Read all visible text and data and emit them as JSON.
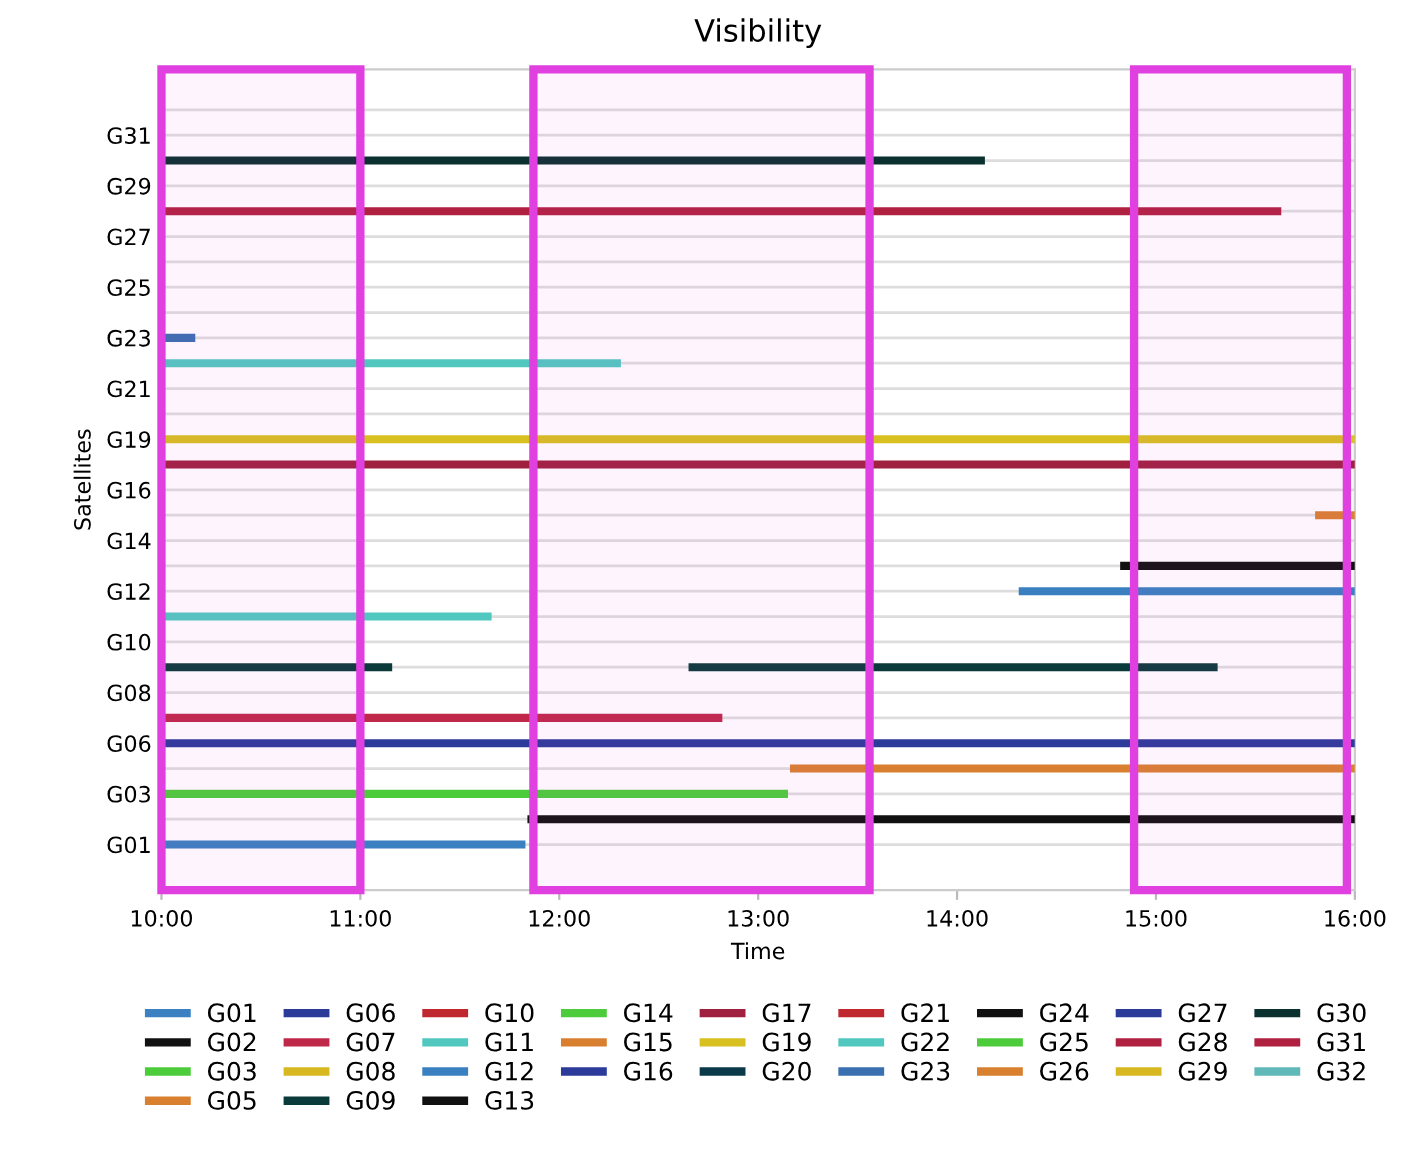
{
  "chart_data": {
    "type": "bar",
    "orientation": "horizontal",
    "title": "Visibility",
    "xlabel": "Time",
    "ylabel": "Satellites",
    "categories": [
      null,
      "G31",
      null,
      "G29",
      null,
      "G27",
      null,
      "G25",
      null,
      "G23",
      null,
      "G21",
      null,
      "G19",
      null,
      "G16",
      null,
      "G14",
      null,
      "G12",
      null,
      "G10",
      null,
      "G08",
      null,
      "G06",
      null,
      "G03",
      null,
      "G01"
    ],
    "xlim": [
      10,
      16
    ],
    "xticks": [
      {
        "value": 10,
        "label": "10:00"
      },
      {
        "value": 11,
        "label": "11:00"
      },
      {
        "value": 12,
        "label": "12:00"
      },
      {
        "value": 13,
        "label": "13:00"
      },
      {
        "value": 14,
        "label": "14:00"
      },
      {
        "value": 15,
        "label": "15:00"
      },
      {
        "value": 16,
        "label": "16:00"
      }
    ],
    "grid": "y",
    "legend": "bottom",
    "bands": [
      {
        "axis": "x",
        "from": 10.0,
        "to": 11.0,
        "color": "#e040e0"
      },
      {
        "axis": "x",
        "from": 11.87,
        "to": 13.56,
        "color": "#e040e0"
      },
      {
        "axis": "x",
        "from": 14.89,
        "to": 15.96,
        "color": "#e040e0"
      }
    ],
    "series": [
      {
        "name": "G01",
        "color": "#3b80c0",
        "values": [
          null,
          null,
          null,
          null,
          null,
          null,
          null,
          null,
          null,
          null,
          null,
          null,
          null,
          null,
          null,
          null,
          null,
          null,
          null,
          null,
          null,
          null,
          null,
          null,
          null,
          null,
          null,
          null,
          null,
          1.83
        ],
        "base": [
          null,
          null,
          null,
          null,
          null,
          null,
          null,
          null,
          null,
          null,
          null,
          null,
          null,
          null,
          null,
          null,
          null,
          null,
          null,
          null,
          null,
          null,
          null,
          null,
          null,
          null,
          null,
          null,
          null,
          10
        ]
      },
      {
        "name": "G02",
        "color": "#111111",
        "values": [
          null,
          null,
          null,
          null,
          null,
          null,
          null,
          null,
          null,
          null,
          null,
          null,
          null,
          null,
          null,
          null,
          null,
          null,
          null,
          null,
          null,
          null,
          null,
          null,
          null,
          null,
          null,
          null,
          4.16,
          null
        ],
        "base": [
          null,
          null,
          null,
          null,
          null,
          null,
          null,
          null,
          null,
          null,
          null,
          null,
          null,
          null,
          null,
          null,
          null,
          null,
          null,
          null,
          null,
          null,
          null,
          null,
          null,
          null,
          null,
          null,
          11.84,
          null
        ]
      },
      {
        "name": "G03",
        "color": "#4ccc3a",
        "values": [
          null,
          null,
          null,
          null,
          null,
          null,
          null,
          null,
          null,
          null,
          null,
          null,
          null,
          null,
          null,
          null,
          null,
          null,
          null,
          null,
          null,
          null,
          null,
          null,
          null,
          null,
          null,
          3.15,
          null,
          null
        ],
        "base": [
          null,
          null,
          null,
          null,
          null,
          null,
          null,
          null,
          null,
          null,
          null,
          null,
          null,
          null,
          null,
          null,
          null,
          null,
          null,
          null,
          null,
          null,
          null,
          null,
          null,
          null,
          null,
          10,
          null,
          null
        ]
      },
      {
        "name": "G05",
        "color": "#d98030",
        "values": [
          null,
          null,
          null,
          null,
          null,
          null,
          null,
          null,
          null,
          null,
          null,
          null,
          null,
          null,
          null,
          null,
          null,
          null,
          null,
          null,
          null,
          null,
          null,
          null,
          null,
          null,
          2.84,
          null,
          null,
          null
        ],
        "base": [
          null,
          null,
          null,
          null,
          null,
          null,
          null,
          null,
          null,
          null,
          null,
          null,
          null,
          null,
          null,
          null,
          null,
          null,
          null,
          null,
          null,
          null,
          null,
          null,
          null,
          null,
          13.16,
          null,
          null,
          null
        ]
      },
      {
        "name": "G06",
        "color": "#2c3a9a",
        "values": [
          null,
          null,
          null,
          null,
          null,
          null,
          null,
          null,
          null,
          null,
          null,
          null,
          null,
          null,
          null,
          null,
          null,
          null,
          null,
          null,
          null,
          null,
          null,
          null,
          null,
          6,
          null,
          null,
          null,
          null
        ],
        "base": [
          null,
          null,
          null,
          null,
          null,
          null,
          null,
          null,
          null,
          null,
          null,
          null,
          null,
          null,
          null,
          null,
          null,
          null,
          null,
          null,
          null,
          null,
          null,
          null,
          null,
          10,
          null,
          null,
          null,
          null
        ]
      },
      {
        "name": "G07",
        "color": "#c0284a",
        "values": [
          null,
          null,
          null,
          null,
          null,
          null,
          null,
          null,
          null,
          null,
          null,
          null,
          null,
          null,
          null,
          null,
          null,
          null,
          null,
          null,
          null,
          null,
          null,
          null,
          2.82,
          null,
          null,
          null,
          null,
          null
        ],
        "base": [
          null,
          null,
          null,
          null,
          null,
          null,
          null,
          null,
          null,
          null,
          null,
          null,
          null,
          null,
          null,
          null,
          null,
          null,
          null,
          null,
          null,
          null,
          null,
          null,
          10,
          null,
          null,
          null,
          null,
          null
        ]
      },
      {
        "name": "G08",
        "color": "#d8b820",
        "values": [
          null,
          null,
          null,
          null,
          null,
          null,
          null,
          null,
          null,
          null,
          null,
          null,
          null,
          null,
          null,
          null,
          null,
          null,
          null,
          null,
          null,
          null,
          null,
          null,
          null,
          null,
          null,
          null,
          null,
          null
        ]
      },
      {
        "name": "G09",
        "color": "#0a3a3a",
        "values": [
          null,
          null,
          null,
          null,
          null,
          null,
          null,
          null,
          null,
          null,
          null,
          null,
          null,
          null,
          null,
          null,
          null,
          null,
          null,
          null,
          null,
          null,
          1.16,
          null,
          null,
          null,
          null,
          null,
          null,
          null
        ],
        "base": [
          null,
          null,
          null,
          null,
          null,
          null,
          null,
          null,
          null,
          null,
          null,
          null,
          null,
          null,
          null,
          null,
          null,
          null,
          null,
          null,
          null,
          null,
          10,
          null,
          null,
          null,
          null,
          null,
          null,
          null
        ]
      },
      {
        "color": "#0a3a3a",
        "values": [
          null,
          null,
          null,
          null,
          null,
          null,
          null,
          null,
          null,
          null,
          null,
          null,
          null,
          null,
          null,
          null,
          null,
          null,
          null,
          null,
          null,
          null,
          2.66,
          null,
          null,
          null,
          null,
          null,
          null,
          null
        ],
        "base": [
          null,
          null,
          null,
          null,
          null,
          null,
          null,
          null,
          null,
          null,
          null,
          null,
          null,
          null,
          null,
          null,
          null,
          null,
          null,
          null,
          null,
          null,
          12.65,
          null,
          null,
          null,
          null,
          null,
          null,
          null
        ]
      },
      {
        "name": "G10",
        "color": "#c02830",
        "values": [
          null,
          null,
          null,
          null,
          null,
          null,
          null,
          null,
          null,
          null,
          null,
          null,
          null,
          null,
          null,
          null,
          null,
          null,
          null,
          null,
          null,
          null,
          null,
          null,
          null,
          null,
          null,
          null,
          null,
          null
        ]
      },
      {
        "name": "G11",
        "color": "#50c8c0",
        "values": [
          null,
          null,
          null,
          null,
          null,
          null,
          null,
          null,
          null,
          null,
          null,
          null,
          null,
          null,
          null,
          null,
          null,
          null,
          null,
          null,
          1.66,
          null,
          null,
          null,
          null,
          null,
          null,
          null,
          null,
          null
        ],
        "base": [
          null,
          null,
          null,
          null,
          null,
          null,
          null,
          null,
          null,
          null,
          null,
          null,
          null,
          null,
          null,
          null,
          null,
          null,
          null,
          null,
          10,
          null,
          null,
          null,
          null,
          null,
          null,
          null,
          null,
          null
        ]
      },
      {
        "name": "G12",
        "color": "#3a80c0",
        "values": [
          null,
          null,
          null,
          null,
          null,
          null,
          null,
          null,
          null,
          null,
          null,
          null,
          null,
          null,
          null,
          null,
          null,
          null,
          null,
          1.69,
          null,
          null,
          null,
          null,
          null,
          null,
          null,
          null,
          null,
          null
        ],
        "base": [
          null,
          null,
          null,
          null,
          null,
          null,
          null,
          null,
          null,
          null,
          null,
          null,
          null,
          null,
          null,
          null,
          null,
          null,
          null,
          14.31,
          null,
          null,
          null,
          null,
          null,
          null,
          null,
          null,
          null,
          null
        ]
      },
      {
        "name": "G13",
        "color": "#111111",
        "values": [
          null,
          null,
          null,
          null,
          null,
          null,
          null,
          null,
          null,
          null,
          null,
          null,
          null,
          null,
          null,
          null,
          null,
          null,
          1.18,
          null,
          null,
          null,
          null,
          null,
          null,
          null,
          null,
          null,
          null,
          null
        ],
        "base": [
          null,
          null,
          null,
          null,
          null,
          null,
          null,
          null,
          null,
          null,
          null,
          null,
          null,
          null,
          null,
          null,
          null,
          null,
          14.82,
          null,
          null,
          null,
          null,
          null,
          null,
          null,
          null,
          null,
          null,
          null
        ]
      },
      {
        "name": "G14",
        "color": "#4ccc3a",
        "values": [
          null,
          null,
          null,
          null,
          null,
          null,
          null,
          null,
          null,
          null,
          null,
          null,
          null,
          null,
          null,
          null,
          null,
          null,
          null,
          null,
          null,
          null,
          null,
          null,
          null,
          null,
          null,
          null,
          null,
          null
        ]
      },
      {
        "name": "G15",
        "color": "#d98030",
        "values": [
          null,
          null,
          null,
          null,
          null,
          null,
          null,
          null,
          null,
          null,
          null,
          null,
          null,
          null,
          null,
          null,
          0.2,
          null,
          null,
          null,
          null,
          null,
          null,
          null,
          null,
          null,
          null,
          null,
          null,
          null
        ],
        "base": [
          null,
          null,
          null,
          null,
          null,
          null,
          null,
          null,
          null,
          null,
          null,
          null,
          null,
          null,
          null,
          null,
          15.8,
          null,
          null,
          null,
          null,
          null,
          null,
          null,
          null,
          null,
          null,
          null,
          null,
          null
        ]
      },
      {
        "name": "G16",
        "color": "#2c3a9a",
        "values": [
          null,
          null,
          null,
          null,
          null,
          null,
          null,
          null,
          null,
          null,
          null,
          null,
          null,
          null,
          null,
          null,
          null,
          null,
          null,
          null,
          null,
          null,
          null,
          null,
          null,
          null,
          null,
          null,
          null,
          null
        ]
      },
      {
        "name": "G17",
        "color": "#a02040",
        "values": [
          null,
          null,
          null,
          null,
          null,
          null,
          null,
          null,
          null,
          null,
          null,
          null,
          null,
          null,
          6,
          null,
          null,
          null,
          null,
          null,
          null,
          null,
          null,
          null,
          null,
          null,
          null,
          null,
          null,
          null
        ],
        "base": [
          null,
          null,
          null,
          null,
          null,
          null,
          null,
          null,
          null,
          null,
          null,
          null,
          null,
          null,
          10,
          null,
          null,
          null,
          null,
          null,
          null,
          null,
          null,
          null,
          null,
          null,
          null,
          null,
          null,
          null
        ]
      },
      {
        "name": "G19",
        "color": "#d8c020",
        "values": [
          null,
          null,
          null,
          null,
          null,
          null,
          null,
          null,
          null,
          null,
          null,
          null,
          null,
          6,
          null,
          null,
          null,
          null,
          null,
          null,
          null,
          null,
          null,
          null,
          null,
          null,
          null,
          null,
          null,
          null
        ],
        "base": [
          null,
          null,
          null,
          null,
          null,
          null,
          null,
          null,
          null,
          null,
          null,
          null,
          null,
          10,
          null,
          null,
          null,
          null,
          null,
          null,
          null,
          null,
          null,
          null,
          null,
          null,
          null,
          null,
          null,
          null
        ]
      },
      {
        "name": "G20",
        "color": "#0a3a4a",
        "values": [
          null,
          null,
          null,
          null,
          null,
          null,
          null,
          null,
          null,
          null,
          null,
          null,
          null,
          null,
          null,
          null,
          null,
          null,
          null,
          null,
          null,
          null,
          null,
          null,
          null,
          null,
          null,
          null,
          null,
          null
        ]
      },
      {
        "name": "G21",
        "color": "#c02830",
        "values": [
          null,
          null,
          null,
          null,
          null,
          null,
          null,
          null,
          null,
          null,
          null,
          null,
          null,
          null,
          null,
          null,
          null,
          null,
          null,
          null,
          null,
          null,
          null,
          null,
          null,
          null,
          null,
          null,
          null,
          null
        ]
      },
      {
        "name": "G22",
        "color": "#50c8c0",
        "values": [
          null,
          null,
          null,
          null,
          null,
          null,
          null,
          null,
          null,
          null,
          2.31,
          null,
          null,
          null,
          null,
          null,
          null,
          null,
          null,
          null,
          null,
          null,
          null,
          null,
          null,
          null,
          null,
          null,
          null,
          null
        ],
        "base": [
          null,
          null,
          null,
          null,
          null,
          null,
          null,
          null,
          null,
          null,
          10,
          null,
          null,
          null,
          null,
          null,
          null,
          null,
          null,
          null,
          null,
          null,
          null,
          null,
          null,
          null,
          null,
          null,
          null,
          null
        ]
      },
      {
        "name": "G23",
        "color": "#3a6fb0",
        "values": [
          null,
          null,
          null,
          null,
          null,
          null,
          null,
          null,
          null,
          0.17,
          null,
          null,
          null,
          null,
          null,
          null,
          null,
          null,
          null,
          null,
          null,
          null,
          null,
          null,
          null,
          null,
          null,
          null,
          null,
          null
        ],
        "base": [
          null,
          null,
          null,
          null,
          null,
          null,
          null,
          null,
          null,
          10,
          null,
          null,
          null,
          null,
          null,
          null,
          null,
          null,
          null,
          null,
          null,
          null,
          null,
          null,
          null,
          null,
          null,
          null,
          null,
          null
        ]
      },
      {
        "name": "G24",
        "color": "#111111",
        "values": [
          null,
          null,
          null,
          null,
          null,
          null,
          null,
          null,
          null,
          null,
          null,
          null,
          null,
          null,
          null,
          null,
          null,
          null,
          null,
          null,
          null,
          null,
          null,
          null,
          null,
          null,
          null,
          null,
          null,
          null
        ]
      },
      {
        "name": "G25",
        "color": "#4ccc3a",
        "values": [
          null,
          null,
          null,
          null,
          null,
          null,
          null,
          null,
          null,
          null,
          null,
          null,
          null,
          null,
          null,
          null,
          null,
          null,
          null,
          null,
          null,
          null,
          null,
          null,
          null,
          null,
          null,
          null,
          null,
          null
        ]
      },
      {
        "name": "G26",
        "color": "#d98030",
        "values": [
          null,
          null,
          null,
          null,
          null,
          null,
          null,
          null,
          null,
          null,
          null,
          null,
          null,
          null,
          null,
          null,
          null,
          null,
          null,
          null,
          null,
          null,
          null,
          null,
          null,
          null,
          null,
          null,
          null,
          null
        ]
      },
      {
        "name": "G27",
        "color": "#2c3a9a",
        "values": [
          null,
          null,
          null,
          null,
          null,
          null,
          null,
          null,
          null,
          null,
          null,
          null,
          null,
          null,
          null,
          null,
          null,
          null,
          null,
          null,
          null,
          null,
          null,
          null,
          null,
          null,
          null,
          null,
          null,
          null
        ]
      },
      {
        "name": "G28",
        "color": "#b02040",
        "values": [
          null,
          null,
          null,
          null,
          5.63,
          null,
          null,
          null,
          null,
          null,
          null,
          null,
          null,
          null,
          null,
          null,
          null,
          null,
          null,
          null,
          null,
          null,
          null,
          null,
          null,
          null,
          null,
          null,
          null,
          null
        ],
        "base": [
          null,
          null,
          null,
          null,
          10,
          null,
          null,
          null,
          null,
          null,
          null,
          null,
          null,
          null,
          null,
          null,
          null,
          null,
          null,
          null,
          null,
          null,
          null,
          null,
          null,
          null,
          null,
          null,
          null,
          null
        ]
      },
      {
        "name": "G29",
        "color": "#d8b820",
        "values": [
          null,
          null,
          null,
          null,
          null,
          null,
          null,
          null,
          null,
          null,
          null,
          null,
          null,
          null,
          null,
          null,
          null,
          null,
          null,
          null,
          null,
          null,
          null,
          null,
          null,
          null,
          null,
          null,
          null,
          null
        ]
      },
      {
        "name": "G30",
        "color": "#0a3030",
        "values": [
          null,
          null,
          4.14,
          null,
          null,
          null,
          null,
          null,
          null,
          null,
          null,
          null,
          null,
          null,
          null,
          null,
          null,
          null,
          null,
          null,
          null,
          null,
          null,
          null,
          null,
          null,
          null,
          null,
          null,
          null
        ],
        "base": [
          null,
          null,
          10,
          null,
          null,
          null,
          null,
          null,
          null,
          null,
          null,
          null,
          null,
          null,
          null,
          null,
          null,
          null,
          null,
          null,
          null,
          null,
          null,
          null,
          null,
          null,
          null,
          null,
          null,
          null
        ]
      },
      {
        "name": "G31",
        "color": "#b02040",
        "values": [
          null,
          null,
          null,
          null,
          null,
          null,
          null,
          null,
          null,
          null,
          null,
          null,
          null,
          null,
          null,
          null,
          null,
          null,
          null,
          null,
          null,
          null,
          null,
          null,
          null,
          null,
          null,
          null,
          null,
          null
        ]
      },
      {
        "name": "G32",
        "color": "#60b8b8",
        "values": [
          null,
          null,
          null,
          null,
          null,
          null,
          null,
          null,
          null,
          null,
          null,
          null,
          null,
          null,
          null,
          null,
          null,
          null,
          null,
          null,
          null,
          null,
          null,
          null,
          null,
          null,
          null,
          null,
          null,
          null
        ]
      }
    ]
  }
}
